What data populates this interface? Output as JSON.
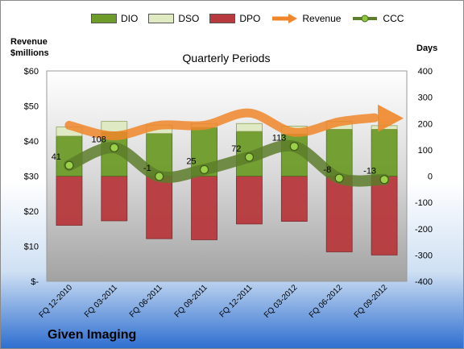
{
  "chart_data": {
    "type": "bar",
    "title": "Quarterly Periods",
    "left_axis_title": [
      "Revenue",
      "$millions"
    ],
    "right_axis_title": "Days",
    "company": "Given Imaging",
    "categories": [
      "FQ 12-2010",
      "FQ 03-2011",
      "FQ 06-2011",
      "FQ 09-2011",
      "FQ 12-2011",
      "FQ 03-2012",
      "FQ 06-2012",
      "FQ 09-2012"
    ],
    "left_ylim": [
      0,
      60
    ],
    "left_ticks": [
      "$-",
      "$10",
      "$20",
      "$30",
      "$40",
      "$50",
      "$60"
    ],
    "right_ylim": [
      -400,
      400
    ],
    "right_ticks": [
      "-400",
      "-300",
      "-200",
      "-100",
      "0",
      "100",
      "200",
      "300",
      "400"
    ],
    "series": [
      {
        "name": "DIO",
        "axis": "right",
        "kind": "stacked-bar",
        "values": [
          152,
          168,
          162,
          185,
          170,
          160,
          178,
          178
        ],
        "color": "#6e9c2a"
      },
      {
        "name": "DSO",
        "axis": "right",
        "kind": "stacked-bar",
        "values": [
          35,
          40,
          32,
          14,
          30,
          30,
          30,
          14
        ],
        "color": "#dfeac2"
      },
      {
        "name": "DPO",
        "axis": "right",
        "kind": "bar-negative",
        "values": [
          -187,
          -170,
          -238,
          -242,
          -182,
          -172,
          -288,
          -300
        ],
        "color": "#b83a3e"
      },
      {
        "name": "Revenue",
        "axis": "left",
        "kind": "line",
        "values": [
          44.5,
          41.5,
          44.5,
          44.5,
          48,
          42.5,
          45.5,
          46.5
        ],
        "color": "#f0862a"
      },
      {
        "name": "CCC",
        "axis": "right",
        "kind": "line",
        "values": [
          41,
          108,
          -1,
          25,
          72,
          113,
          -8,
          -13
        ],
        "color": "#5c7d2a"
      }
    ],
    "ccc_labels": [
      "41",
      "108",
      "-1",
      "25",
      "72",
      "113",
      "-8",
      "-13"
    ],
    "grid": false,
    "legend": "top"
  }
}
